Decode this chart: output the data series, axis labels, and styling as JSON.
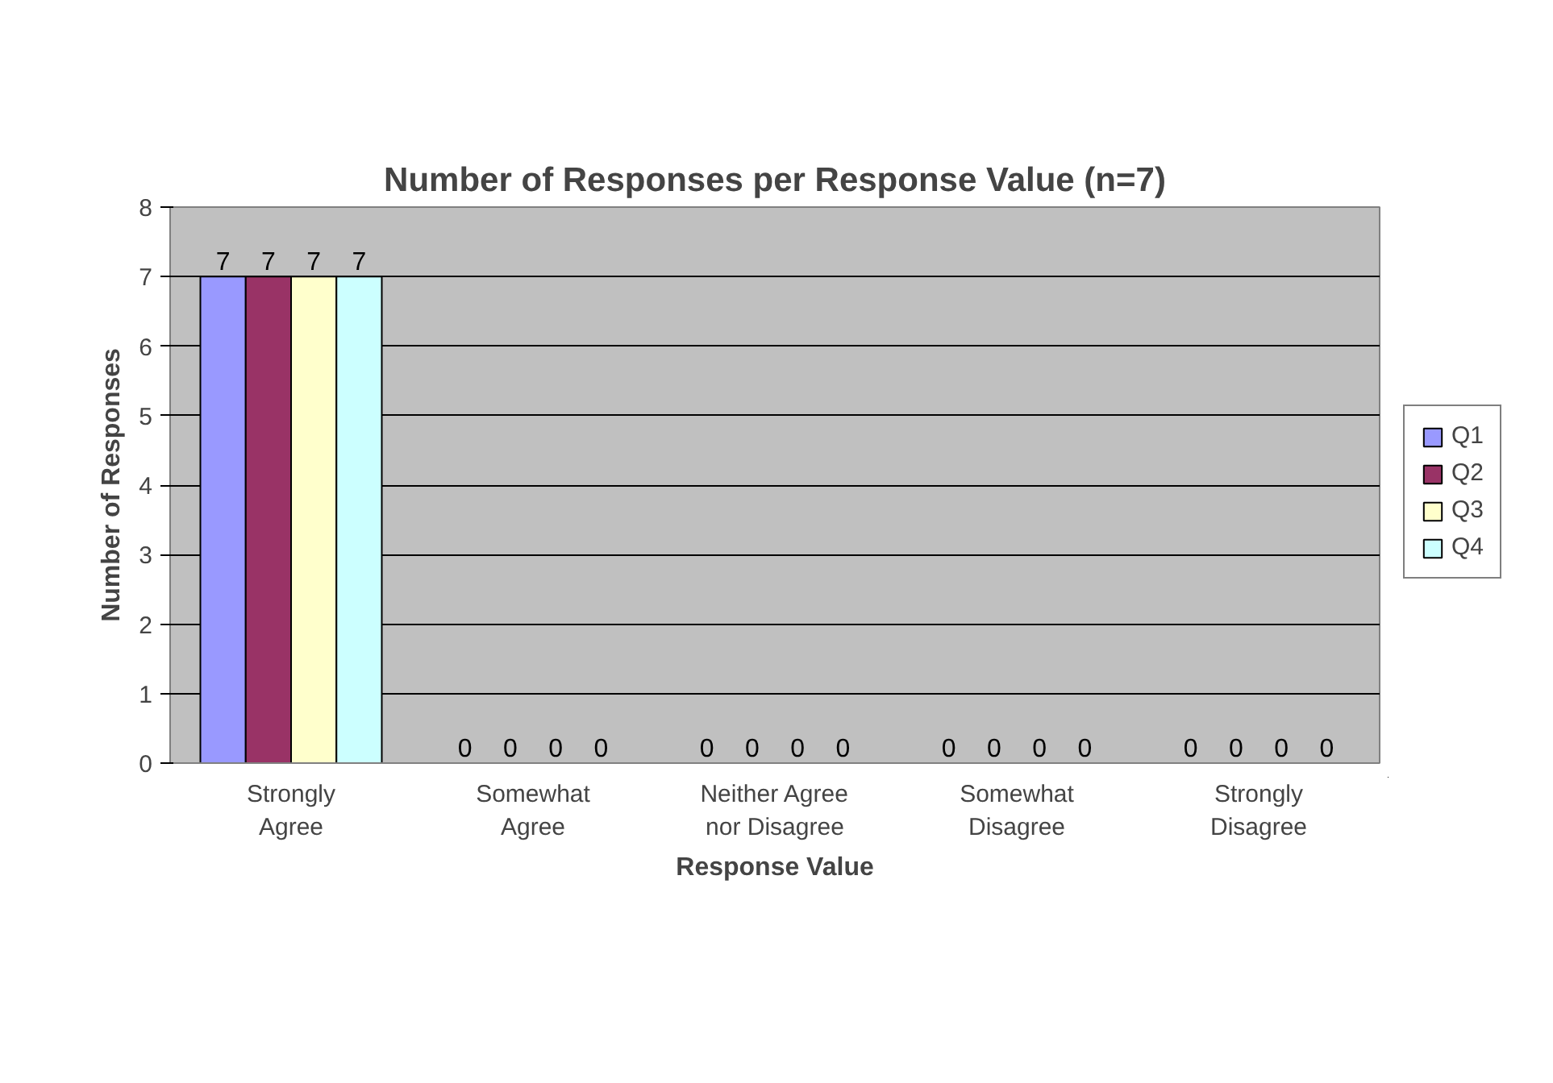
{
  "chart_data": {
    "type": "bar",
    "title": "Number of Responses per Response Value (n=7)",
    "xlabel": "Response Value",
    "ylabel": "Number of Responses",
    "categories": [
      "Strongly Agree",
      "Somewhat Agree",
      "Neither Agree nor Disagree",
      "Somewhat Disagree",
      "Strongly Disagree"
    ],
    "series": [
      {
        "name": "Q1",
        "color": "#9999ff",
        "values": [
          7,
          0,
          0,
          0,
          0
        ]
      },
      {
        "name": "Q2",
        "color": "#993366",
        "values": [
          7,
          0,
          0,
          0,
          0
        ]
      },
      {
        "name": "Q3",
        "color": "#ffffcc",
        "values": [
          7,
          0,
          0,
          0,
          0
        ]
      },
      {
        "name": "Q4",
        "color": "#ccffff",
        "values": [
          7,
          0,
          0,
          0,
          0
        ]
      }
    ],
    "ylim": [
      0,
      8
    ],
    "yticks": [
      0,
      1,
      2,
      3,
      4,
      5,
      6,
      7,
      8
    ],
    "grid": "y",
    "legend": "right",
    "data_labels": true
  }
}
